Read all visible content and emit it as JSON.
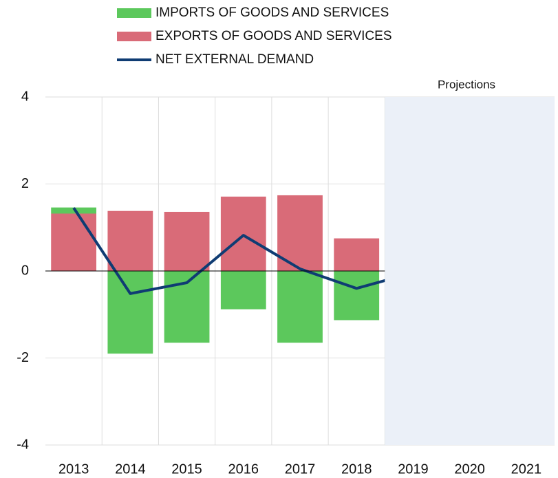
{
  "chart_data": {
    "type": "bar",
    "categories": [
      "2013",
      "2014",
      "2015",
      "2016",
      "2017",
      "2018",
      "2019",
      "2020",
      "2021"
    ],
    "series": [
      {
        "name": "IMPORTS OF GOODS AND SERVICES",
        "kind": "bar",
        "color": "#5cc85c",
        "values": [
          0.14,
          -1.9,
          -1.65,
          -0.88,
          -1.65,
          -1.13,
          null,
          null,
          null
        ]
      },
      {
        "name": "EXPORTS OF GOODS AND SERVICES",
        "kind": "bar",
        "color": "#d96b78",
        "values": [
          1.32,
          1.38,
          1.36,
          1.71,
          1.74,
          0.75,
          null,
          null,
          null
        ]
      },
      {
        "name": "NET EXTERNAL DEMAND",
        "kind": "line",
        "color": "#0f3c73",
        "values": [
          1.45,
          -0.52,
          -0.27,
          0.82,
          0.05,
          -0.4,
          -0.04,
          null,
          null
        ]
      }
    ],
    "ylim": [
      -4,
      4
    ],
    "yticks": [
      -4,
      -2,
      0,
      2,
      4
    ],
    "grid": true,
    "projection_label": "Projections",
    "projection_start": "2019",
    "projection_color": "#ebf0f8"
  }
}
